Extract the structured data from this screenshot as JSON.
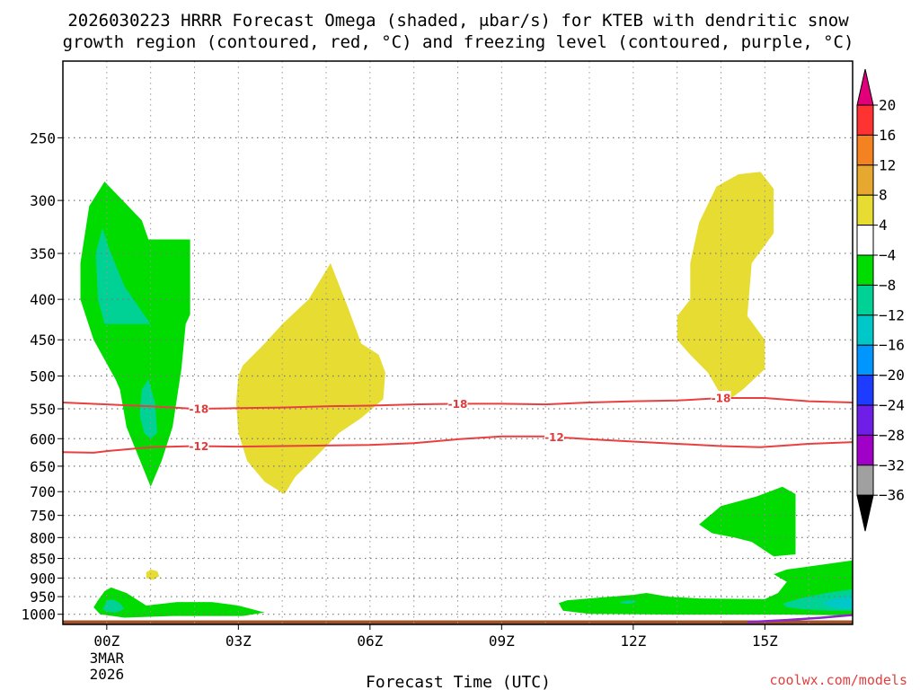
{
  "chart_data": {
    "type": "heatmap",
    "title_line1": "2026030223 HRRR Forecast Omega (shaded, μbar/s) for KTEB with dendritic snow",
    "title_line2": "growth region (contoured, red, °C) and freezing level (contoured, purple, °C)",
    "xlabel": "Forecast Time (UTC)",
    "ylabel": "",
    "credit": "coolwx.com/models",
    "x_range_hours": [
      -1,
      17
    ],
    "y_range_hpa": [
      200,
      1030
    ],
    "y_scale": "log",
    "x_ticks": [
      {
        "hour": 0,
        "label": "00Z",
        "sub1": "3MAR",
        "sub2": "2026"
      },
      {
        "hour": 3,
        "label": "03Z"
      },
      {
        "hour": 6,
        "label": "06Z"
      },
      {
        "hour": 9,
        "label": "09Z"
      },
      {
        "hour": 12,
        "label": "12Z"
      },
      {
        "hour": 15,
        "label": "15Z"
      }
    ],
    "x_grid_hours": [
      0,
      1,
      2,
      3,
      4,
      5,
      6,
      7,
      8,
      9,
      10,
      11,
      12,
      13,
      14,
      15,
      16
    ],
    "y_ticks": [
      250,
      300,
      350,
      400,
      450,
      500,
      550,
      600,
      650,
      700,
      750,
      800,
      850,
      900,
      950,
      1000
    ],
    "grid": true,
    "colorbar": {
      "labels": [
        "20",
        "16",
        "12",
        "8",
        "4",
        "−4",
        "−8",
        "−12",
        "−16",
        "−20",
        "−24",
        "−28",
        "−32",
        "−36"
      ],
      "bins": [
        {
          "min": 20,
          "color": "#e2007a"
        },
        {
          "min": 16,
          "max": 20,
          "color": "#ff3232"
        },
        {
          "min": 12,
          "max": 16,
          "color": "#f58220"
        },
        {
          "min": 8,
          "max": 12,
          "color": "#e6a82e"
        },
        {
          "min": 4,
          "max": 8,
          "color": "#e6dc32"
        },
        {
          "min": -4,
          "max": 4,
          "color": "#ffffff"
        },
        {
          "min": -8,
          "max": -4,
          "color": "#00dc00"
        },
        {
          "min": -12,
          "max": -8,
          "color": "#00d296"
        },
        {
          "min": -16,
          "max": -12,
          "color": "#00c8c8"
        },
        {
          "min": -20,
          "max": -16,
          "color": "#0096ff"
        },
        {
          "min": -24,
          "max": -20,
          "color": "#1e3cff"
        },
        {
          "min": -28,
          "max": -24,
          "color": "#6e1ee6"
        },
        {
          "min": -32,
          "max": -28,
          "color": "#a000c8"
        },
        {
          "min": -36,
          "max": -32,
          "color": "#a0a0a0"
        },
        {
          "max": -36,
          "color": "#000000"
        }
      ]
    },
    "shaded_regions": [
      {
        "color": "#00dc00",
        "points": [
          [
            -0.2,
            960
          ],
          [
            -0.05,
            935
          ],
          [
            0.1,
            925
          ],
          [
            0.45,
            940
          ],
          [
            0.9,
            975
          ],
          [
            1.6,
            965
          ],
          [
            2.4,
            965
          ],
          [
            3.0,
            975
          ],
          [
            3.6,
            995
          ],
          [
            3.1,
            1005
          ],
          [
            1.5,
            1005
          ],
          [
            0.4,
            1010
          ],
          [
            -0.15,
            1000
          ],
          [
            -0.3,
            980
          ]
        ]
      },
      {
        "color": "#00d296",
        "points": [
          [
            -0.05,
            975
          ],
          [
            0.0,
            960
          ],
          [
            0.15,
            958
          ],
          [
            0.3,
            968
          ],
          [
            0.4,
            985
          ],
          [
            0.2,
            995
          ],
          [
            0.0,
            992
          ],
          [
            -0.1,
            985
          ]
        ]
      },
      {
        "color": "#e6dc32",
        "points": [
          [
            0.9,
            885
          ],
          [
            1.0,
            878
          ],
          [
            1.15,
            882
          ],
          [
            1.2,
            895
          ],
          [
            1.05,
            905
          ],
          [
            0.9,
            900
          ]
        ]
      },
      {
        "color": "#00dc00",
        "points": [
          [
            -0.6,
            360
          ],
          [
            -0.4,
            305
          ],
          [
            -0.05,
            284
          ],
          [
            0.8,
            318
          ],
          [
            0.95,
            336
          ],
          [
            1.9,
            336
          ],
          [
            1.9,
            418
          ],
          [
            1.8,
            430
          ],
          [
            1.7,
            490
          ],
          [
            1.5,
            580
          ],
          [
            1.25,
            640
          ],
          [
            1.0,
            690
          ],
          [
            0.45,
            580
          ],
          [
            0.3,
            520
          ],
          [
            0.2,
            505
          ],
          [
            -0.3,
            450
          ],
          [
            -0.6,
            400
          ]
        ]
      },
      {
        "color": "#00d296",
        "points": [
          [
            -0.25,
            350
          ],
          [
            -0.1,
            325
          ],
          [
            0.05,
            345
          ],
          [
            0.4,
            385
          ],
          [
            1.0,
            430
          ],
          [
            -0.05,
            430
          ],
          [
            -0.2,
            400
          ]
        ]
      },
      {
        "color": "#00d296",
        "points": [
          [
            0.8,
            520
          ],
          [
            0.95,
            505
          ],
          [
            1.1,
            540
          ],
          [
            1.15,
            590
          ],
          [
            1.0,
            600
          ],
          [
            0.85,
            590
          ],
          [
            0.75,
            560
          ]
        ]
      },
      {
        "color": "#e6dc32",
        "points": [
          [
            3.0,
            500
          ],
          [
            3.1,
            485
          ],
          [
            3.6,
            455
          ],
          [
            4.0,
            430
          ],
          [
            4.6,
            400
          ],
          [
            5.1,
            360
          ],
          [
            5.5,
            410
          ],
          [
            5.8,
            455
          ],
          [
            6.2,
            470
          ],
          [
            6.35,
            495
          ],
          [
            6.3,
            535
          ],
          [
            5.8,
            565
          ],
          [
            5.3,
            590
          ],
          [
            4.8,
            630
          ],
          [
            4.3,
            670
          ],
          [
            4.05,
            705
          ],
          [
            3.6,
            680
          ],
          [
            3.2,
            640
          ],
          [
            3.0,
            590
          ],
          [
            2.95,
            540
          ]
        ]
      },
      {
        "color": "#00dc00",
        "points": [
          [
            10.3,
            968
          ],
          [
            10.5,
            960
          ],
          [
            11.2,
            953
          ],
          [
            12.0,
            945
          ],
          [
            12.3,
            940
          ],
          [
            12.8,
            950
          ],
          [
            13.5,
            955
          ],
          [
            14.2,
            956
          ],
          [
            15.0,
            957
          ],
          [
            15.3,
            940
          ],
          [
            15.5,
            910
          ],
          [
            15.2,
            890
          ],
          [
            15.5,
            878
          ],
          [
            17.0,
            855
          ],
          [
            17.0,
            1005
          ],
          [
            16.6,
            1003
          ],
          [
            16.2,
            1002
          ],
          [
            15.5,
            1001
          ],
          [
            13.0,
            1001
          ],
          [
            11.0,
            999
          ],
          [
            10.4,
            990
          ]
        ]
      },
      {
        "color": "#00d296",
        "points": [
          [
            11.7,
            965
          ],
          [
            11.9,
            960
          ],
          [
            12.1,
            964
          ],
          [
            11.9,
            971
          ],
          [
            11.7,
            968
          ]
        ]
      },
      {
        "color": "#00d296",
        "points": [
          [
            15.4,
            970
          ],
          [
            15.8,
            955
          ],
          [
            16.4,
            940
          ],
          [
            17.0,
            930
          ],
          [
            17.0,
            990
          ],
          [
            16.5,
            990
          ],
          [
            15.9,
            986
          ],
          [
            15.5,
            980
          ]
        ]
      },
      {
        "color": "#00c8c8",
        "points": [
          [
            16.3,
            968
          ],
          [
            16.6,
            955
          ],
          [
            17.0,
            948
          ],
          [
            17.0,
            985
          ],
          [
            16.7,
            983
          ],
          [
            16.5,
            978
          ]
        ]
      },
      {
        "color": "#00dc00",
        "points": [
          [
            13.5,
            770
          ],
          [
            14.0,
            730
          ],
          [
            14.8,
            710
          ],
          [
            15.4,
            690
          ],
          [
            15.7,
            705
          ],
          [
            15.7,
            840
          ],
          [
            15.2,
            845
          ],
          [
            14.7,
            810
          ],
          [
            14.3,
            800
          ],
          [
            13.8,
            790
          ]
        ]
      },
      {
        "color": "#e6dc32",
        "points": [
          [
            13.0,
            420
          ],
          [
            13.3,
            400
          ],
          [
            13.3,
            360
          ],
          [
            13.5,
            320
          ],
          [
            13.9,
            288
          ],
          [
            14.4,
            278
          ],
          [
            14.9,
            276
          ],
          [
            15.2,
            290
          ],
          [
            15.2,
            330
          ],
          [
            14.7,
            360
          ],
          [
            14.6,
            420
          ],
          [
            15.0,
            450
          ],
          [
            15.0,
            490
          ],
          [
            14.5,
            520
          ],
          [
            14.1,
            540
          ],
          [
            13.7,
            495
          ],
          [
            13.3,
            470
          ],
          [
            13.0,
            450
          ]
        ]
      }
    ],
    "contours": [
      {
        "name": "-18",
        "color": "#e84040",
        "label_hours": [
          2.1,
          8.0,
          14.0
        ],
        "points": [
          [
            -1,
            540
          ],
          [
            0,
            543
          ],
          [
            1,
            546
          ],
          [
            2,
            550
          ],
          [
            3,
            549
          ],
          [
            4,
            548
          ],
          [
            5,
            546
          ],
          [
            6,
            545
          ],
          [
            7,
            543
          ],
          [
            8,
            542
          ],
          [
            9,
            542
          ],
          [
            10,
            543
          ],
          [
            11,
            540
          ],
          [
            12,
            538
          ],
          [
            13,
            537
          ],
          [
            14,
            533
          ],
          [
            15,
            533
          ],
          [
            16,
            538
          ],
          [
            17,
            540
          ]
        ]
      },
      {
        "name": "-12",
        "color": "#e84040",
        "label_hours": [
          2.1,
          10.2
        ],
        "points": [
          [
            -1,
            624
          ],
          [
            -0.3,
            625
          ],
          [
            0,
            622
          ],
          [
            1,
            615
          ],
          [
            2,
            613
          ],
          [
            3,
            614
          ],
          [
            4,
            613
          ],
          [
            5,
            612
          ],
          [
            6,
            611
          ],
          [
            7,
            608
          ],
          [
            8,
            601
          ],
          [
            9,
            596
          ],
          [
            10,
            596
          ],
          [
            11,
            601
          ],
          [
            12,
            605
          ],
          [
            13,
            609
          ],
          [
            14,
            613
          ],
          [
            14.9,
            615
          ],
          [
            16,
            609
          ],
          [
            17,
            606
          ]
        ]
      }
    ],
    "freezing_level": {
      "color": "#8c28c8",
      "points": [
        [
          14.6,
          1023
        ],
        [
          15.5,
          1017
        ],
        [
          16.3,
          1010
        ],
        [
          17.0,
          1002
        ]
      ]
    },
    "ground": {
      "color": "#a0522d",
      "top_hpa": 1018
    }
  }
}
